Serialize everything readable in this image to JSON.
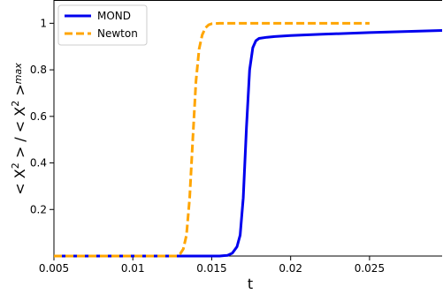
{
  "chart_data": {
    "type": "line",
    "title": "",
    "xlabel": "t",
    "ylabel": "< X² > / < X² >max",
    "ylabel_parts": {
      "main": "< X",
      "sup": "2",
      "mid": " > / < X",
      "sup2": "2",
      "end": " >",
      "sub": "max"
    },
    "xlim": [
      0.005,
      0.0296
    ],
    "ylim": [
      0,
      1.1
    ],
    "xticks": [
      0.005,
      0.01,
      0.015,
      0.02,
      0.025
    ],
    "xtick_labels": [
      "0.005",
      "0.01",
      "0.015",
      "0.02",
      "0.025"
    ],
    "yticks": [
      0.2,
      0.4,
      0.6,
      0.8,
      1.0
    ],
    "ytick_labels": [
      "0.2",
      "0.4",
      "0.6",
      "0.8",
      "1"
    ],
    "grid": false,
    "legend_position": "top-left",
    "series": [
      {
        "name": "MOND",
        "color": "#0000ee",
        "style": "solid",
        "x": [
          0.005,
          0.0155,
          0.016,
          0.0163,
          0.0166,
          0.0168,
          0.017,
          0.0172,
          0.0174,
          0.0176,
          0.0178,
          0.018,
          0.0185,
          0.019,
          0.02,
          0.022,
          0.025,
          0.0296
        ],
        "y": [
          0,
          0,
          0.003,
          0.012,
          0.04,
          0.09,
          0.25,
          0.55,
          0.8,
          0.895,
          0.925,
          0.935,
          0.94,
          0.943,
          0.947,
          0.953,
          0.96,
          0.969
        ]
      },
      {
        "name": "Newton",
        "color": "#ffa500",
        "style": "dashed",
        "x": [
          0.005,
          0.0128,
          0.013,
          0.0132,
          0.0134,
          0.0136,
          0.0138,
          0.014,
          0.0142,
          0.0144,
          0.0146,
          0.0148,
          0.015,
          0.0155,
          0.025
        ],
        "y": [
          0,
          0,
          0.01,
          0.03,
          0.09,
          0.25,
          0.5,
          0.75,
          0.89,
          0.95,
          0.98,
          0.993,
          0.998,
          1.0,
          1.0
        ]
      }
    ]
  }
}
